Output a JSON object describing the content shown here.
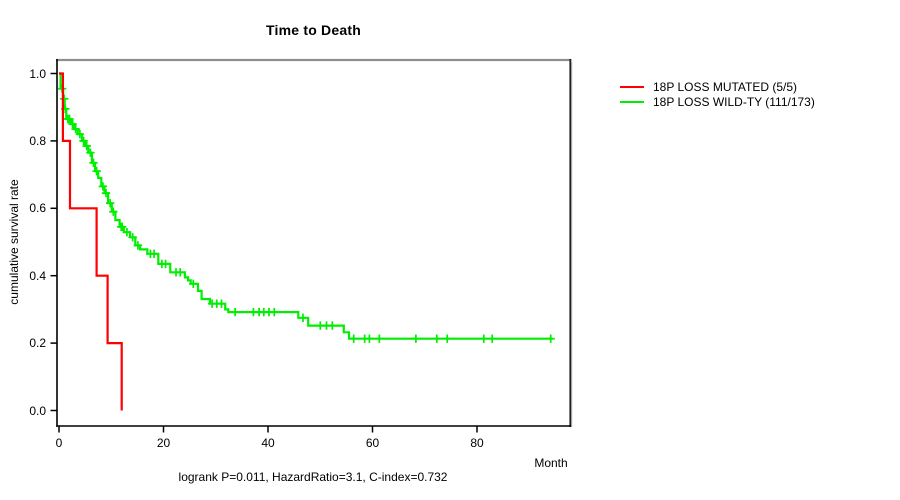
{
  "chart_data": {
    "type": "line",
    "subtype": "kaplan-meier-step",
    "title": "Time to Death",
    "xlabel": "Month",
    "ylabel": "cumulative survival rate",
    "footnote": "logrank P=0.011, HazardRatio=3.1, C-index=0.732",
    "xlim": [
      0,
      97
    ],
    "ylim": [
      0.0,
      1.0
    ],
    "xticks": [
      "0",
      "20",
      "40",
      "60",
      "80"
    ],
    "yticks": [
      "0.0",
      "0.2",
      "0.4",
      "0.6",
      "0.8",
      "1.0"
    ],
    "grid": false,
    "legend_position": "right-outside",
    "axis_color": "#000000",
    "border_top_color": "#8f8f8f",
    "border_right_color": "#222222",
    "series": [
      {
        "id": "mutated",
        "name": "18P LOSS MUTATED (5/5)",
        "color": "#ff0000",
        "start": 1.0,
        "steps": [
          [
            0.75,
            0.8
          ],
          [
            2.1,
            0.6
          ],
          [
            7.2,
            0.4
          ],
          [
            9.3,
            0.2
          ],
          [
            12.0,
            0.0
          ]
        ],
        "censors": [],
        "end": null
      },
      {
        "id": "wildtype",
        "name": "18P LOSS WILD-TY (111/173)",
        "color": "#00ee00",
        "start": 1.0,
        "steps": [
          [
            0.3,
            0.955
          ],
          [
            0.8,
            0.925
          ],
          [
            1.1,
            0.895
          ],
          [
            1.4,
            0.865
          ],
          [
            2.3,
            0.85
          ],
          [
            2.9,
            0.835
          ],
          [
            3.6,
            0.82
          ],
          [
            4.4,
            0.8
          ],
          [
            5.0,
            0.785
          ],
          [
            5.6,
            0.765
          ],
          [
            6.3,
            0.735
          ],
          [
            6.9,
            0.71
          ],
          [
            7.5,
            0.69
          ],
          [
            8.1,
            0.665
          ],
          [
            8.7,
            0.645
          ],
          [
            9.4,
            0.615
          ],
          [
            10.1,
            0.59
          ],
          [
            10.8,
            0.565
          ],
          [
            11.6,
            0.545
          ],
          [
            12.4,
            0.529
          ],
          [
            13.6,
            0.514
          ],
          [
            14.6,
            0.49
          ],
          [
            15.5,
            0.478
          ],
          [
            16.9,
            0.465
          ],
          [
            19.0,
            0.435
          ],
          [
            21.3,
            0.41
          ],
          [
            24.1,
            0.395
          ],
          [
            24.7,
            0.386
          ],
          [
            25.2,
            0.376
          ],
          [
            26.6,
            0.355
          ],
          [
            27.3,
            0.331
          ],
          [
            28.9,
            0.317
          ],
          [
            31.8,
            0.3
          ],
          [
            32.4,
            0.292
          ],
          [
            45.8,
            0.275
          ],
          [
            47.7,
            0.252
          ],
          [
            54.5,
            0.232
          ],
          [
            55.5,
            0.213
          ]
        ],
        "censors": [
          [
            0.6,
            0.955
          ],
          [
            1.0,
            0.925
          ],
          [
            1.2,
            0.895
          ],
          [
            1.7,
            0.865
          ],
          [
            2.0,
            0.865
          ],
          [
            2.6,
            0.85
          ],
          [
            3.2,
            0.835
          ],
          [
            4.0,
            0.82
          ],
          [
            4.7,
            0.8
          ],
          [
            5.3,
            0.785
          ],
          [
            6.0,
            0.765
          ],
          [
            6.6,
            0.735
          ],
          [
            7.2,
            0.71
          ],
          [
            8.4,
            0.665
          ],
          [
            9.0,
            0.645
          ],
          [
            9.8,
            0.615
          ],
          [
            10.4,
            0.59
          ],
          [
            11.9,
            0.545
          ],
          [
            12.1,
            0.545
          ],
          [
            13.0,
            0.529
          ],
          [
            14.1,
            0.514
          ],
          [
            15.1,
            0.49
          ],
          [
            17.5,
            0.465
          ],
          [
            18.2,
            0.465
          ],
          [
            19.7,
            0.435
          ],
          [
            20.4,
            0.435
          ],
          [
            22.4,
            0.41
          ],
          [
            23.2,
            0.41
          ],
          [
            25.7,
            0.376
          ],
          [
            29.3,
            0.317
          ],
          [
            30.2,
            0.317
          ],
          [
            31.1,
            0.317
          ],
          [
            33.7,
            0.292
          ],
          [
            37.2,
            0.292
          ],
          [
            38.3,
            0.292
          ],
          [
            39.2,
            0.292
          ],
          [
            40.2,
            0.292
          ],
          [
            41.2,
            0.292
          ],
          [
            46.7,
            0.275
          ],
          [
            50.0,
            0.252
          ],
          [
            51.2,
            0.252
          ],
          [
            52.3,
            0.252
          ],
          [
            56.4,
            0.213
          ],
          [
            58.5,
            0.213
          ],
          [
            59.4,
            0.213
          ],
          [
            61.3,
            0.213
          ],
          [
            68.3,
            0.213
          ],
          [
            72.3,
            0.213
          ],
          [
            74.3,
            0.213
          ],
          [
            81.3,
            0.213
          ],
          [
            82.9,
            0.213
          ],
          [
            94.1,
            0.213
          ]
        ],
        "end": 94.5
      }
    ]
  }
}
